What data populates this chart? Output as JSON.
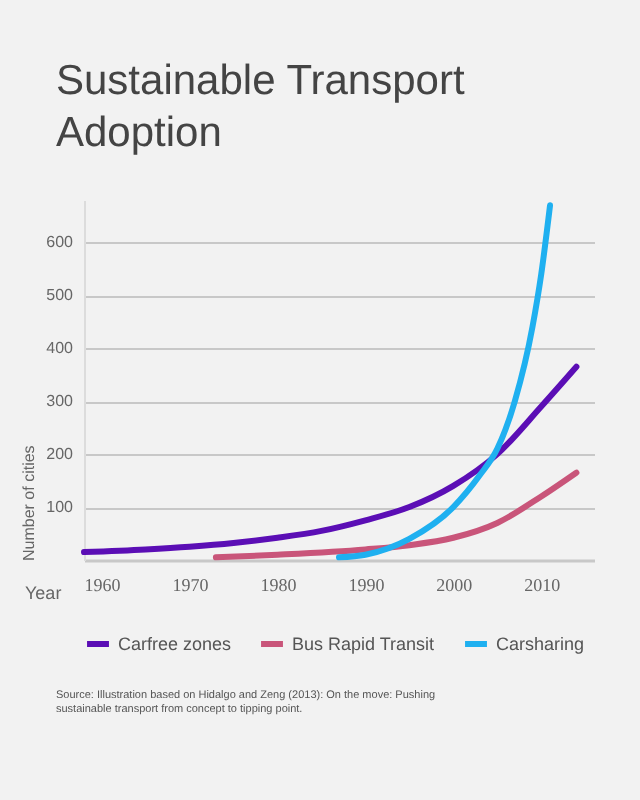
{
  "chart_data": {
    "type": "line",
    "title": "Sustainable Transport Adoption",
    "xlabel": "Year",
    "ylabel": "Number of cities",
    "xlim": [
      1958,
      2016
    ],
    "xticks": [
      1960,
      1970,
      1980,
      1990,
      2000,
      2010
    ],
    "ylim": [
      0,
      680
    ],
    "yticks": [
      100,
      200,
      300,
      400,
      500,
      600
    ],
    "grid": "y",
    "legend": "bottom",
    "series": [
      {
        "name": "Carfree zones",
        "color": "#5b0eb5",
        "x": [
          1958,
          1965,
          1970,
          1975,
          1980,
          1985,
          1990,
          1995,
          2000,
          2005,
          2010,
          2014
        ],
        "values": [
          15,
          20,
          25,
          32,
          42,
          55,
          75,
          100,
          140,
          200,
          290,
          365
        ]
      },
      {
        "name": "Bus Rapid Transit",
        "color": "#c9557a",
        "x": [
          1973,
          1980,
          1990,
          1995,
          2000,
          2005,
          2010,
          2014
        ],
        "values": [
          5,
          10,
          20,
          28,
          42,
          70,
          120,
          165
        ]
      },
      {
        "name": "Carsharing",
        "color": "#1fb0f0",
        "x": [
          1987,
          1990,
          1995,
          2000,
          2003,
          2005,
          2007,
          2009,
          2010,
          2011
        ],
        "values": [
          5,
          10,
          40,
          100,
          160,
          210,
          300,
          440,
          540,
          670
        ]
      }
    ],
    "annotations": [
      "Source: Illustration based on Hidalgo and Zeng (2013): On the move: Pushing sustainable transport from concept to tipping point."
    ]
  }
}
